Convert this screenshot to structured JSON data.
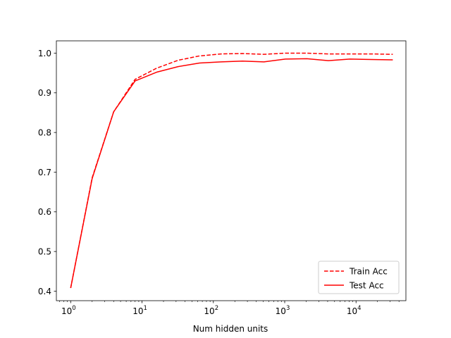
{
  "chart_data": {
    "type": "line",
    "title": "",
    "xlabel": "Num hidden units",
    "ylabel": "",
    "xscale": "log",
    "xlim": [
      0.63,
      50000
    ],
    "ylim": [
      0.376,
      1.031
    ],
    "grid": false,
    "legend_position": "lower right",
    "x_ticks": [
      {
        "value": 1,
        "base": "10",
        "exp": "0"
      },
      {
        "value": 10,
        "base": "10",
        "exp": "1"
      },
      {
        "value": 100,
        "base": "10",
        "exp": "2"
      },
      {
        "value": 1000,
        "base": "10",
        "exp": "3"
      },
      {
        "value": 10000,
        "base": "10",
        "exp": "4"
      }
    ],
    "y_ticks": [
      "0.4",
      "0.5",
      "0.6",
      "0.7",
      "0.8",
      "0.9",
      "1.0"
    ],
    "x": [
      1,
      2,
      4,
      8,
      16,
      32,
      64,
      128,
      256,
      512,
      1024,
      2048,
      4096,
      8192,
      16384,
      32768
    ],
    "series": [
      {
        "name": "Train Acc",
        "style": "dashed",
        "color": "#ff0000",
        "values": [
          0.408,
          0.686,
          0.852,
          0.934,
          0.962,
          0.982,
          0.993,
          0.998,
          0.999,
          0.997,
          1.0,
          1.0,
          0.998,
          0.998,
          0.998,
          0.997
        ]
      },
      {
        "name": "Test Acc",
        "style": "solid",
        "color": "#ff0000",
        "values": [
          0.408,
          0.684,
          0.852,
          0.93,
          0.952,
          0.966,
          0.975,
          0.978,
          0.98,
          0.978,
          0.985,
          0.986,
          0.981,
          0.985,
          0.984,
          0.983
        ]
      }
    ]
  }
}
